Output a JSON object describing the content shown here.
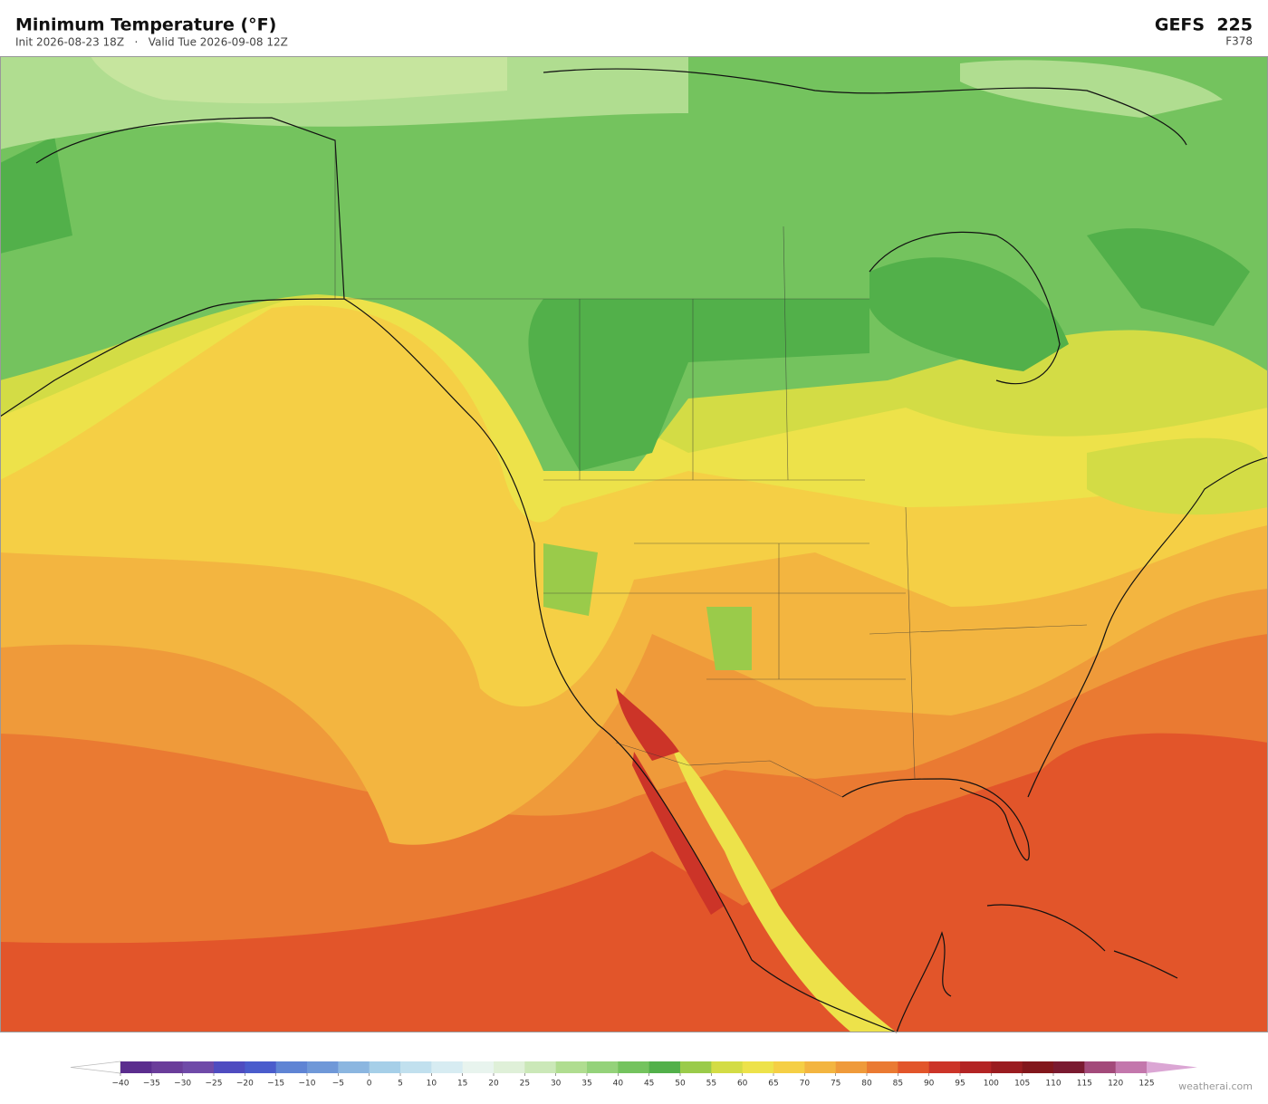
{
  "header": {
    "title": "Minimum Temperature  (°F)",
    "subtitle": "Init 2026-08-23 18Z   ·   Valid Tue 2026-09-08 12Z",
    "model": "GEFS  225",
    "forecast_hour": "F378"
  },
  "colorbar": {
    "ticks": [
      {
        "value": -40,
        "label": "−40"
      },
      {
        "value": -35,
        "label": "−35"
      },
      {
        "value": -30,
        "label": "−30"
      },
      {
        "value": -25,
        "label": "−25"
      },
      {
        "value": -20,
        "label": "−20"
      },
      {
        "value": -15,
        "label": "−15"
      },
      {
        "value": -10,
        "label": "−10"
      },
      {
        "value": -5,
        "label": "−5"
      },
      0,
      5,
      10,
      15,
      20,
      25,
      30,
      35,
      40,
      45,
      50,
      55,
      60,
      65,
      70,
      75,
      80,
      85,
      90,
      95,
      100,
      105,
      110,
      115,
      120,
      125
    ],
    "colors": [
      "#5b2d8e",
      "#6a3d9a",
      "#6f4aa8",
      "#4f4cc0",
      "#4a5ccc",
      "#5f84d4",
      "#6f98d8",
      "#8bb6e0",
      "#a6cfe8",
      "#c1e0ee",
      "#d7ecf2",
      "#e8f4ee",
      "#dff0d8",
      "#cbe8b8",
      "#b0dd90",
      "#94d27a",
      "#74c35e",
      "#52b04a",
      "#9acb4a",
      "#d3dc45",
      "#ede24a",
      "#f5cf45",
      "#f3b540",
      "#ef9a3a",
      "#ea7a32",
      "#e2552a",
      "#cc3428",
      "#b32424",
      "#9a1c20",
      "#82171c",
      "#7a1a30",
      "#a34a7a",
      "#c377ac"
    ],
    "under_color": "#ffffff",
    "over_color": "#dba6d4"
  },
  "watermark": "weatherai.com"
}
